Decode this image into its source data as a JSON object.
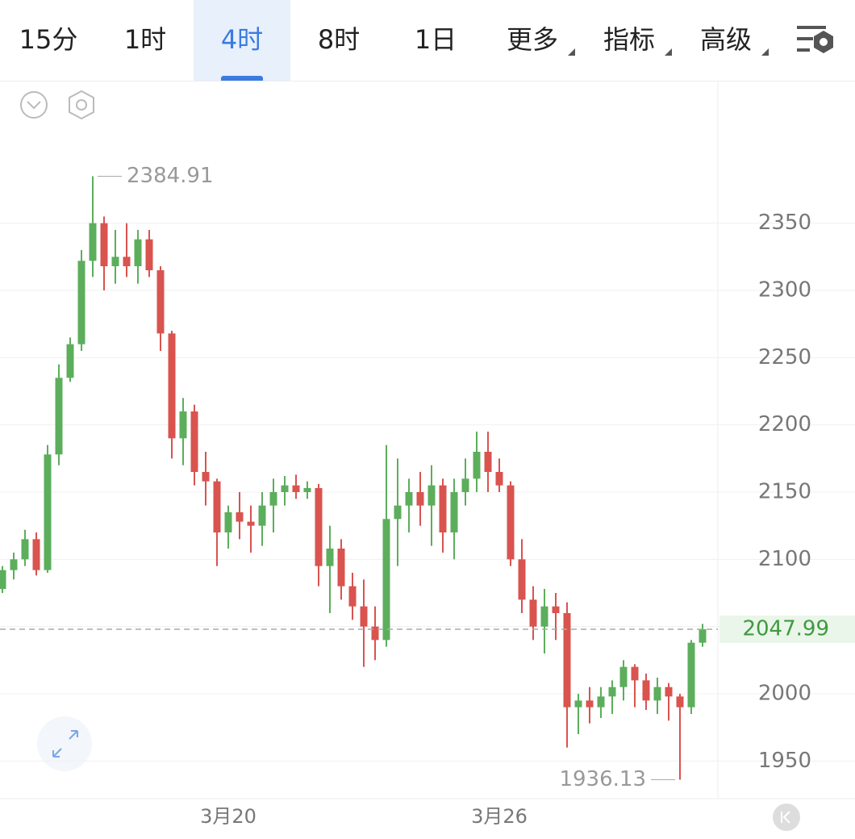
{
  "tabs": {
    "items": [
      "15分",
      "1时",
      "4时",
      "8时",
      "1日",
      "更多",
      "指标",
      "高级"
    ],
    "selected": 2
  },
  "chart_data": {
    "type": "candlestick",
    "categories": [
      null,
      null,
      null,
      null,
      null,
      null,
      null,
      null,
      null,
      null,
      null,
      null,
      null,
      null,
      null,
      null,
      null,
      null,
      null,
      null,
      "3月20",
      null,
      null,
      null,
      null,
      null,
      null,
      null,
      null,
      null,
      null,
      null,
      null,
      null,
      null,
      null,
      null,
      null,
      null,
      null,
      null,
      null,
      null,
      null,
      "3月26",
      null,
      null,
      null,
      null,
      null,
      null,
      null,
      null,
      null,
      null,
      null,
      null,
      null,
      null,
      null,
      null,
      null,
      null
    ],
    "open": [
      2078,
      2092,
      2100,
      2115,
      2092,
      2178,
      2235,
      2260,
      2322,
      2350,
      2318,
      2325,
      2318,
      2338,
      2315,
      2268,
      2190,
      2210,
      2165,
      2158,
      2120,
      2135,
      2128,
      2125,
      2140,
      2150,
      2155,
      2150,
      2153,
      2095,
      2108,
      2080,
      2065,
      2050,
      2040,
      2130,
      2140,
      2150,
      2140,
      2155,
      2120,
      2150,
      2160,
      2180,
      2165,
      2155,
      2100,
      2070,
      2050,
      2065,
      2060,
      1990,
      1995,
      1990,
      1998,
      2005,
      2020,
      2010,
      1995,
      2005,
      1998,
      1990,
      2038
    ],
    "high": [
      2095,
      2105,
      2122,
      2120,
      2185,
      2245,
      2265,
      2330,
      2384.91,
      2355,
      2345,
      2350,
      2345,
      2345,
      2318,
      2270,
      2220,
      2215,
      2180,
      2160,
      2140,
      2150,
      2140,
      2150,
      2160,
      2162,
      2163,
      2158,
      2156,
      2125,
      2115,
      2090,
      2085,
      2065,
      2185,
      2175,
      2160,
      2165,
      2170,
      2160,
      2160,
      2175,
      2195,
      2195,
      2175,
      2158,
      2115,
      2080,
      2078,
      2075,
      2068,
      2000,
      2005,
      2005,
      2010,
      2025,
      2022,
      2015,
      2012,
      2008,
      2000,
      2040,
      2052
    ],
    "low": [
      2075,
      2085,
      2095,
      2088,
      2090,
      2170,
      2232,
      2255,
      2310,
      2300,
      2305,
      2310,
      2305,
      2310,
      2255,
      2175,
      2170,
      2155,
      2140,
      2095,
      2108,
      2115,
      2105,
      2110,
      2120,
      2140,
      2145,
      2145,
      2080,
      2060,
      2070,
      2055,
      2020,
      2025,
      2035,
      2095,
      2120,
      2125,
      2110,
      2105,
      2100,
      2140,
      2150,
      2150,
      2150,
      2095,
      2060,
      2040,
      2030,
      2040,
      1960,
      1970,
      1978,
      1982,
      1985,
      1995,
      1990,
      1988,
      1985,
      1980,
      1936.13,
      1985,
      2035
    ],
    "close": [
      2092,
      2100,
      2115,
      2092,
      2178,
      2235,
      2260,
      2322,
      2350,
      2318,
      2325,
      2318,
      2338,
      2315,
      2268,
      2190,
      2210,
      2165,
      2158,
      2120,
      2135,
      2128,
      2125,
      2140,
      2150,
      2155,
      2150,
      2153,
      2095,
      2108,
      2080,
      2065,
      2050,
      2040,
      2130,
      2140,
      2150,
      2140,
      2155,
      2120,
      2150,
      2160,
      2180,
      2165,
      2155,
      2100,
      2070,
      2050,
      2065,
      2060,
      1990,
      1995,
      1990,
      1998,
      2005,
      2020,
      2010,
      1995,
      2005,
      1998,
      1990,
      2038,
      2047.99
    ],
    "up_color": "#5cae5c",
    "down_color": "#d9534f",
    "annotations": {
      "high": "2384.91",
      "low": "1936.13",
      "last": "2047.99"
    },
    "ylim": [
      1922,
      2456
    ],
    "yticks": [
      1950,
      2000,
      2050,
      2100,
      2150,
      2200,
      2250,
      2300,
      2350
    ],
    "grid": true
  }
}
